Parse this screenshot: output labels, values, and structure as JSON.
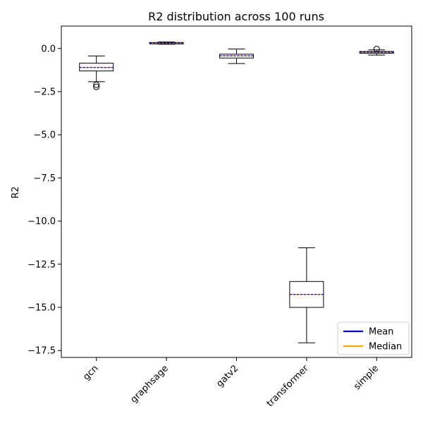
{
  "chart_data": {
    "type": "box",
    "title": "R2 distribution across 100 runs",
    "xlabel": "",
    "ylabel": "R2",
    "ylim": [
      -17.9,
      1.3
    ],
    "yticks": [
      0.0,
      -2.5,
      -5.0,
      -7.5,
      -10.0,
      -12.5,
      -15.0,
      -17.5
    ],
    "ytick_labels": [
      "0.0",
      "−2.5",
      "−5.0",
      "−7.5",
      "−10.0",
      "−12.5",
      "−15.0",
      "−17.5"
    ],
    "categories": [
      "gcn",
      "graphsage",
      "gatv2",
      "transformer",
      "simple"
    ],
    "boxes": [
      {
        "name": "gcn",
        "whisker_low": -1.92,
        "q1": -1.3,
        "median": -1.1,
        "mean": -1.1,
        "q3": -0.85,
        "whisker_high": -0.43,
        "outliers": [
          -2.1,
          -2.22
        ]
      },
      {
        "name": "graphsage",
        "whisker_low": 0.25,
        "q1": 0.27,
        "median": 0.31,
        "mean": 0.31,
        "q3": 0.35,
        "whisker_high": 0.38,
        "outliers": []
      },
      {
        "name": "gatv2",
        "whisker_low": -0.87,
        "q1": -0.55,
        "median": -0.42,
        "mean": -0.42,
        "q3": -0.33,
        "whisker_high": -0.03,
        "outliers": []
      },
      {
        "name": "transformer",
        "whisker_low": -17.05,
        "q1": -15.0,
        "median": -14.25,
        "mean": -14.25,
        "q3": -13.5,
        "whisker_high": -11.55,
        "outliers": []
      },
      {
        "name": "simple",
        "whisker_low": -0.38,
        "q1": -0.28,
        "median": -0.22,
        "mean": -0.22,
        "q3": -0.17,
        "whisker_high": -0.08,
        "outliers": [
          -0.03
        ]
      }
    ],
    "legend": {
      "position": "lower-right",
      "entries": [
        {
          "label": "Mean",
          "color": "#0000ff"
        },
        {
          "label": "Median",
          "color": "#ffa500"
        }
      ]
    },
    "colors": {
      "mean": "#0000ff",
      "median": "#ffa500",
      "box": "#000000"
    }
  }
}
